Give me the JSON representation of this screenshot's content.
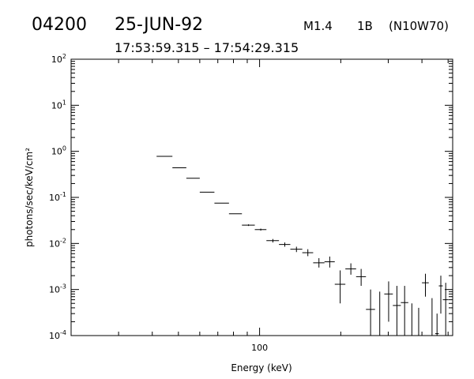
{
  "header": {
    "event_id": "04200",
    "date": "25-JUN-92",
    "flare_class": "M1.4",
    "optical_class": "1B",
    "location": "(N10W70)",
    "time_range": "17:53:59.315 – 17:54:29.315"
  },
  "chart_data": {
    "type": "scatter",
    "title": "",
    "xlabel": "Energy (keV)",
    "ylabel": "photons/sec/keV/cm²",
    "x_scale": "log",
    "y_scale": "log",
    "xlim": [
      20,
      520
    ],
    "ylim": [
      0.0001,
      100
    ],
    "x_ticks": [
      {
        "value": 100,
        "label": "100"
      }
    ],
    "y_ticks": [
      {
        "value": 100,
        "base": "10",
        "exp": "2"
      },
      {
        "value": 10,
        "base": "10",
        "exp": "1"
      },
      {
        "value": 1,
        "base": "10",
        "exp": "0"
      },
      {
        "value": 0.1,
        "base": "10",
        "exp": "-1"
      },
      {
        "value": 0.01,
        "base": "10",
        "exp": "-2"
      },
      {
        "value": 0.001,
        "base": "10",
        "exp": "-3"
      },
      {
        "value": 0.0001,
        "base": "10",
        "exp": "-4"
      }
    ],
    "grid": false,
    "legend": "none",
    "series": [
      {
        "marker": "crosshair-errorbars",
        "points": [
          {
            "x": 44.5,
            "xlo": 41.5,
            "xhi": 47.5,
            "y": 0.78,
            "ylo": 0.78,
            "yhi": 0.78
          },
          {
            "x": 50.5,
            "xlo": 47.5,
            "xhi": 53.5,
            "y": 0.44,
            "ylo": 0.44,
            "yhi": 0.44
          },
          {
            "x": 56.5,
            "xlo": 53.5,
            "xhi": 60,
            "y": 0.26,
            "ylo": 0.26,
            "yhi": 0.26
          },
          {
            "x": 64,
            "xlo": 60,
            "xhi": 68,
            "y": 0.13,
            "ylo": 0.13,
            "yhi": 0.13
          },
          {
            "x": 72.5,
            "xlo": 68,
            "xhi": 77,
            "y": 0.075,
            "ylo": 0.075,
            "yhi": 0.075
          },
          {
            "x": 81.5,
            "xlo": 77,
            "xhi": 86,
            "y": 0.044,
            "ylo": 0.044,
            "yhi": 0.044
          },
          {
            "x": 91,
            "xlo": 86,
            "xhi": 96,
            "y": 0.025,
            "ylo": 0.024,
            "yhi": 0.026
          },
          {
            "x": 101,
            "xlo": 96,
            "xhi": 106,
            "y": 0.02,
            "ylo": 0.019,
            "yhi": 0.021
          },
          {
            "x": 112,
            "xlo": 106,
            "xhi": 118,
            "y": 0.0115,
            "ylo": 0.0105,
            "yhi": 0.0125
          },
          {
            "x": 124,
            "xlo": 118,
            "xhi": 130,
            "y": 0.0095,
            "ylo": 0.0085,
            "yhi": 0.0105
          },
          {
            "x": 137,
            "xlo": 130,
            "xhi": 144,
            "y": 0.0075,
            "ylo": 0.0065,
            "yhi": 0.0085
          },
          {
            "x": 151,
            "xlo": 144,
            "xhi": 158,
            "y": 0.0063,
            "ylo": 0.0053,
            "yhi": 0.0075
          },
          {
            "x": 166,
            "xlo": 158,
            "xhi": 174,
            "y": 0.0038,
            "ylo": 0.003,
            "yhi": 0.0048
          },
          {
            "x": 182,
            "xlo": 174,
            "xhi": 190,
            "y": 0.004,
            "ylo": 0.003,
            "yhi": 0.0052
          },
          {
            "x": 199,
            "xlo": 190,
            "xhi": 208,
            "y": 0.0013,
            "ylo": 0.0005,
            "yhi": 0.0026
          },
          {
            "x": 218,
            "xlo": 208,
            "xhi": 228,
            "y": 0.0028,
            "ylo": 0.0021,
            "yhi": 0.0037
          },
          {
            "x": 238,
            "xlo": 228,
            "xhi": 248,
            "y": 0.0019,
            "ylo": 0.0012,
            "yhi": 0.0028
          },
          {
            "x": 258,
            "xlo": 248,
            "xhi": 268,
            "y": 0.00037,
            "ylo": 0.0001,
            "yhi": 0.001
          },
          {
            "x": 279,
            "xlo": 268,
            "xhi": 290,
            "y": 0.0001,
            "ylo": 0.0001,
            "yhi": 0.0009
          },
          {
            "x": 301,
            "xlo": 290,
            "xhi": 312,
            "y": 0.0008,
            "ylo": 0.0002,
            "yhi": 0.0015
          },
          {
            "x": 323,
            "xlo": 312,
            "xhi": 334,
            "y": 0.00045,
            "ylo": 0.0001,
            "yhi": 0.0012
          },
          {
            "x": 345,
            "xlo": 334,
            "xhi": 356,
            "y": 0.00052,
            "ylo": 0.0001,
            "yhi": 0.0012
          },
          {
            "x": 367,
            "xlo": 356,
            "xhi": 378,
            "y": 0.0001,
            "ylo": 0.0001,
            "yhi": 0.0005
          },
          {
            "x": 389,
            "xlo": 378,
            "xhi": 400,
            "y": 0.0001,
            "ylo": 0.0001,
            "yhi": 0.0004
          },
          {
            "x": 412,
            "xlo": 400,
            "xhi": 424,
            "y": 0.0014,
            "ylo": 0.0007,
            "yhi": 0.0022
          },
          {
            "x": 436,
            "xlo": 424,
            "xhi": 448,
            "y": 0.0001,
            "ylo": 0.0001,
            "yhi": 0.00065
          },
          {
            "x": 455,
            "xlo": 448,
            "xhi": 462,
            "y": 0.00011,
            "ylo": 0.0001,
            "yhi": 0.0003
          },
          {
            "x": 470,
            "xlo": 462,
            "xhi": 478,
            "y": 0.0012,
            "ylo": 0.0003,
            "yhi": 0.002
          },
          {
            "x": 490,
            "xlo": 478,
            "xhi": 502,
            "y": 0.0006,
            "ylo": 0.0001,
            "yhi": 0.0014
          }
        ]
      }
    ]
  }
}
